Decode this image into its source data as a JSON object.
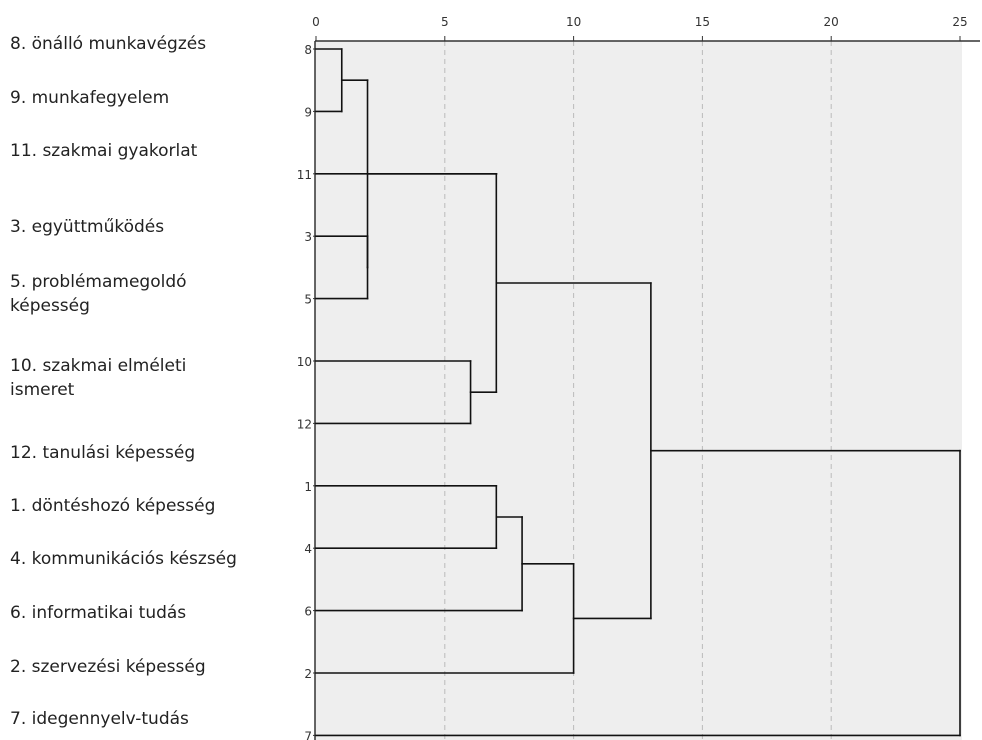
{
  "chart_data": {
    "type": "dendrogram",
    "orientation": "horizontal",
    "xlim": [
      0,
      25
    ],
    "x_ticks": [
      "0",
      "5",
      "10",
      "15",
      "20",
      "25"
    ],
    "x_tick_values": [
      0,
      5,
      10,
      15,
      20,
      25
    ],
    "leaves": [
      {
        "id": "8",
        "label": "8. önálló munkavégzés"
      },
      {
        "id": "9",
        "label": "9. munkafegyelem"
      },
      {
        "id": "11",
        "label": "11. szakmai gyakorlat"
      },
      {
        "id": "3",
        "label": "3. együttműködés"
      },
      {
        "id": "5",
        "label": "5. problémamegoldó képesség"
      },
      {
        "id": "10",
        "label": "10. szakmai elméleti ismeret"
      },
      {
        "id": "12",
        "label": "12. tanulási képesség"
      },
      {
        "id": "1",
        "label": "1. döntéshozó képesség"
      },
      {
        "id": "4",
        "label": "4. kommunikációs készség"
      },
      {
        "id": "6",
        "label": "6. informatikai tudás"
      },
      {
        "id": "2",
        "label": "2. szervezési képesség"
      },
      {
        "id": "7",
        "label": "7. idegennyelv-tudás"
      }
    ],
    "merges": [
      {
        "id": "A",
        "children": [
          "8",
          "9"
        ],
        "distance": 1
      },
      {
        "id": "B",
        "children": [
          "3",
          "5"
        ],
        "distance": 2
      },
      {
        "id": "C",
        "children": [
          "A",
          "B"
        ],
        "distance": 2
      },
      {
        "id": "D",
        "children": [
          "10",
          "12"
        ],
        "distance": 6
      },
      {
        "id": "E",
        "children": [
          "11",
          "C"
        ],
        "distance": 7
      },
      {
        "id": "F",
        "children": [
          "E",
          "D"
        ],
        "distance": 7
      },
      {
        "id": "G",
        "children": [
          "1",
          "4"
        ],
        "distance": 7
      },
      {
        "id": "H",
        "children": [
          "G",
          "6"
        ],
        "distance": 8
      },
      {
        "id": "I",
        "children": [
          "H",
          "2"
        ],
        "distance": 10
      },
      {
        "id": "J",
        "children": [
          "F",
          "I"
        ],
        "distance": 13
      },
      {
        "id": "K",
        "children": [
          "J",
          "7"
        ],
        "distance": 25
      }
    ],
    "grid": true,
    "grid_style": "dashed vertical"
  },
  "labels": [
    {
      "lines": [
        "8. önálló munkavégzés"
      ]
    },
    {
      "lines": [
        "9. munkafegyelem"
      ]
    },
    {
      "lines": [
        "11. szakmai gyakorlat"
      ]
    },
    {
      "lines": [
        "3. együttműködés"
      ]
    },
    {
      "lines": [
        "5. problémamegoldó",
        "képesség"
      ]
    },
    {
      "lines": [
        "10. szakmai elméleti",
        "ismeret"
      ]
    },
    {
      "lines": [
        "12. tanulási képesség"
      ]
    },
    {
      "lines": [
        "1. döntéshozó képesség"
      ]
    },
    {
      "lines": [
        "4. kommunikációs készség"
      ]
    },
    {
      "lines": [
        "6. informatikai tudás"
      ]
    },
    {
      "lines": [
        "2. szervezési képesség"
      ]
    },
    {
      "lines": [
        "7. idegennyelv-tudás"
      ]
    }
  ],
  "colors": {
    "plot_background": "#eeeeee",
    "axis": "#333333",
    "grid": "#bbbbbb",
    "line": "#111111"
  }
}
